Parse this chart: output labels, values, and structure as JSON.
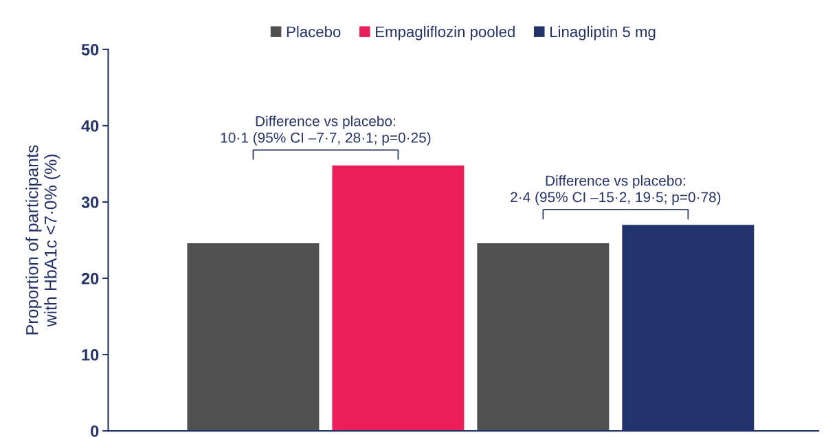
{
  "chart_data": {
    "type": "bar",
    "ylabel": "Proportion of participants\nwith HbA1c <7·0% (%)",
    "categories": [
      null,
      null,
      null,
      null
    ],
    "series": [
      {
        "name": "Placebo",
        "color": "#505050",
        "values": [
          24.6,
          null,
          24.6,
          null
        ]
      },
      {
        "name": "Empagliflozin pooled",
        "color": "#ea1f5a",
        "values": [
          null,
          34.8,
          null,
          null
        ]
      },
      {
        "name": "Linagliptin 5 mg",
        "color": "#23336b",
        "values": [
          null,
          null,
          null,
          27.0
        ]
      }
    ],
    "ylim": [
      0,
      50
    ],
    "yticks": [
      0,
      10,
      20,
      30,
      40,
      50
    ],
    "annotations": [
      "Difference vs placebo:\n10·1 (95% CI –7·7, 28·1; p=0·25)",
      "Difference vs placebo:\n2·4 (95% CI –15·2, 19·5; p=0·78)"
    ],
    "tick_labels": "y",
    "grid": false,
    "legend": "top"
  }
}
